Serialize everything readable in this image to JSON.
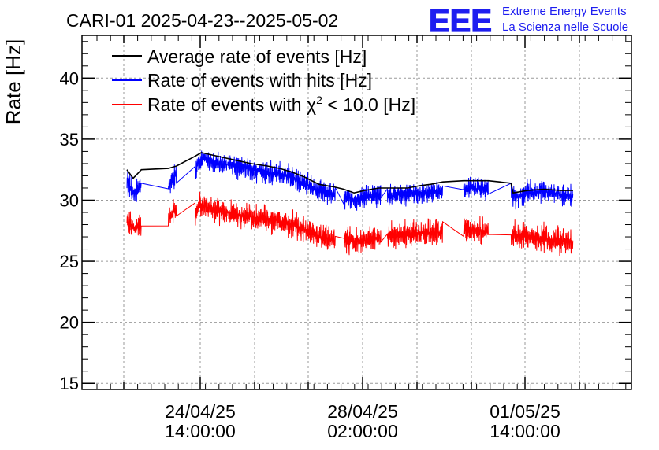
{
  "chart_data": {
    "type": "line",
    "title": "CARI-01 2025-04-23--2025-05-02",
    "ylabel": "Rate [Hz]",
    "xlabel": "",
    "ylim": [
      14.5,
      43.5
    ],
    "yticks": [
      15,
      20,
      25,
      30,
      35,
      40
    ],
    "xticks": [
      {
        "line1": "24/04/25",
        "line2": "14:00:00"
      },
      {
        "line1": "28/04/25",
        "line2": "02:00:00"
      },
      {
        "line1": "01/05/25",
        "line2": "14:00:00"
      }
    ],
    "grid": true,
    "legend_position": "top-left",
    "legend": [
      {
        "label": "Average rate of events [Hz]",
        "color": "#000000"
      },
      {
        "label": "Rate of events with hits [Hz]",
        "color": "#0000ff"
      },
      {
        "label_prefix": "Rate of events with ",
        "chi": "χ",
        "sup": "2",
        "label_suffix": " < 10.0 [Hz]",
        "color": "#ff0000"
      }
    ],
    "series": [
      {
        "name": "Average rate of events [Hz]",
        "color": "#000000",
        "points": [
          [
            0.0,
            32.5
          ],
          [
            0.3,
            31.8
          ],
          [
            0.7,
            32.5
          ],
          [
            2.0,
            32.6
          ],
          [
            2.4,
            32.8
          ],
          [
            3.3,
            33.6
          ],
          [
            3.6,
            33.9
          ],
          [
            4.4,
            33.6
          ],
          [
            5.2,
            33.3
          ],
          [
            6.0,
            33.0
          ],
          [
            6.8,
            32.8
          ],
          [
            7.4,
            32.6
          ],
          [
            8.0,
            32.3
          ],
          [
            8.6,
            31.9
          ],
          [
            9.3,
            31.3
          ],
          [
            10.0,
            31.1
          ],
          [
            10.5,
            30.9
          ],
          [
            11.0,
            30.6
          ],
          [
            11.5,
            30.8
          ],
          [
            12.2,
            31.0
          ],
          [
            13.0,
            31.0
          ],
          [
            13.6,
            31.0
          ],
          [
            14.2,
            31.2
          ],
          [
            14.7,
            31.3
          ],
          [
            15.3,
            31.5
          ],
          [
            16.3,
            31.6
          ],
          [
            17.5,
            31.6
          ],
          [
            18.6,
            31.4
          ],
          [
            18.7,
            30.6
          ],
          [
            19.4,
            30.8
          ],
          [
            20.2,
            30.9
          ],
          [
            21.0,
            30.8
          ],
          [
            21.6,
            30.8
          ]
        ]
      },
      {
        "name": "Rate of events with hits [Hz]",
        "color": "#0000ff",
        "amp": 1.25,
        "gaps": [
          [
            0.7,
            2.0
          ],
          [
            2.4,
            3.3
          ],
          [
            10.1,
            10.5
          ],
          [
            12.3,
            12.6
          ],
          [
            15.3,
            16.3
          ],
          [
            17.5,
            18.6
          ]
        ],
        "points": [
          [
            0.0,
            31.6
          ],
          [
            0.3,
            30.6
          ],
          [
            0.7,
            31.2
          ],
          [
            2.0,
            31.0
          ],
          [
            2.4,
            32.2
          ],
          [
            3.3,
            32.5
          ],
          [
            3.6,
            33.4
          ],
          [
            4.4,
            33.1
          ],
          [
            5.2,
            32.8
          ],
          [
            6.0,
            32.5
          ],
          [
            6.8,
            32.3
          ],
          [
            7.4,
            32.2
          ],
          [
            8.0,
            31.8
          ],
          [
            8.6,
            31.4
          ],
          [
            9.3,
            30.8
          ],
          [
            10.0,
            30.5
          ],
          [
            10.5,
            30.3
          ],
          [
            11.0,
            30.0
          ],
          [
            11.5,
            30.2
          ],
          [
            12.2,
            30.4
          ],
          [
            13.0,
            30.4
          ],
          [
            13.6,
            30.5
          ],
          [
            14.2,
            30.6
          ],
          [
            14.7,
            30.7
          ],
          [
            15.3,
            30.8
          ],
          [
            16.3,
            30.9
          ],
          [
            17.5,
            31.0
          ],
          [
            18.6,
            30.8
          ],
          [
            18.7,
            30.2
          ],
          [
            19.4,
            30.6
          ],
          [
            20.2,
            30.7
          ],
          [
            21.0,
            30.5
          ],
          [
            21.6,
            30.3
          ]
        ]
      },
      {
        "name": "Rate of events with chi2 < 10.0 [Hz]",
        "color": "#ff0000",
        "amp": 1.45,
        "gaps": [
          [
            0.7,
            2.0
          ],
          [
            2.4,
            3.3
          ],
          [
            10.1,
            10.5
          ],
          [
            12.3,
            12.6
          ],
          [
            15.3,
            16.3
          ],
          [
            17.5,
            18.6
          ]
        ],
        "points": [
          [
            0.0,
            28.3
          ],
          [
            0.3,
            27.7
          ],
          [
            0.7,
            27.8
          ],
          [
            2.0,
            28.4
          ],
          [
            2.4,
            29.3
          ],
          [
            3.3,
            29.0
          ],
          [
            3.6,
            29.6
          ],
          [
            4.4,
            29.2
          ],
          [
            5.2,
            28.8
          ],
          [
            6.0,
            28.6
          ],
          [
            6.8,
            28.5
          ],
          [
            7.4,
            28.3
          ],
          [
            8.0,
            28.0
          ],
          [
            8.6,
            27.6
          ],
          [
            9.3,
            27.0
          ],
          [
            10.0,
            26.7
          ],
          [
            10.5,
            26.9
          ],
          [
            11.0,
            26.6
          ],
          [
            11.5,
            26.7
          ],
          [
            12.2,
            26.9
          ],
          [
            13.0,
            27.1
          ],
          [
            13.6,
            27.2
          ],
          [
            14.2,
            27.3
          ],
          [
            14.7,
            27.3
          ],
          [
            15.3,
            27.4
          ],
          [
            16.3,
            27.6
          ],
          [
            17.5,
            27.4
          ],
          [
            18.6,
            26.3
          ],
          [
            18.7,
            27.2
          ],
          [
            19.4,
            27.0
          ],
          [
            20.2,
            26.9
          ],
          [
            21.0,
            26.7
          ],
          [
            21.6,
            26.5
          ]
        ]
      }
    ]
  },
  "logo": {
    "text": "EEE",
    "line1": "Extreme Energy Events",
    "line2": "La Scienza nelle Scuole",
    "color": "#1e1ef0"
  }
}
